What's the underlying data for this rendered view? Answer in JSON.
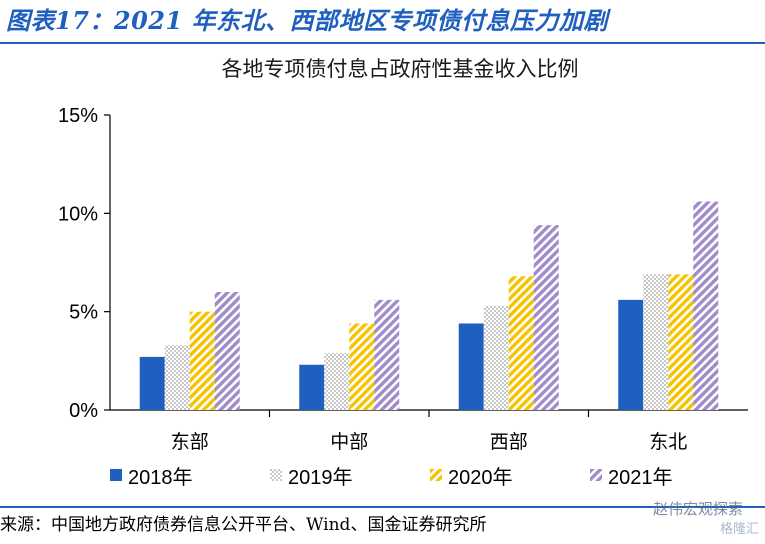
{
  "header": {
    "title": "图表17：2021 年东北、西部地区专项债付息压力加剧"
  },
  "chart_data": {
    "type": "bar",
    "title": "各地专项债付息占政府性基金收入比例",
    "categories": [
      "东部",
      "中部",
      "西部",
      "东北"
    ],
    "series": [
      {
        "name": "2018年",
        "values": [
          2.7,
          2.3,
          4.4,
          5.6
        ],
        "color": "#1f5fbf",
        "pattern": "solid"
      },
      {
        "name": "2019年",
        "values": [
          3.3,
          2.9,
          5.3,
          6.9
        ],
        "color": "#c8c8c8",
        "pattern": "check"
      },
      {
        "name": "2020年",
        "values": [
          5.0,
          4.4,
          6.8,
          6.9
        ],
        "color": "#f5c400",
        "pattern": "diagonal"
      },
      {
        "name": "2021年",
        "values": [
          6.0,
          5.6,
          9.4,
          10.6
        ],
        "color": "#a08cc8",
        "pattern": "diagonal"
      }
    ],
    "yticks": [
      "0%",
      "5%",
      "10%",
      "15%"
    ],
    "ylim": [
      0,
      15
    ],
    "legend_position": "bottom",
    "grid": false
  },
  "footer": {
    "source": "来源：中国地方政府债券信息公开平台、Wind、国金证券研究所",
    "watermark": "赵伟宏观探索",
    "watermark_sub": "格隆汇"
  }
}
